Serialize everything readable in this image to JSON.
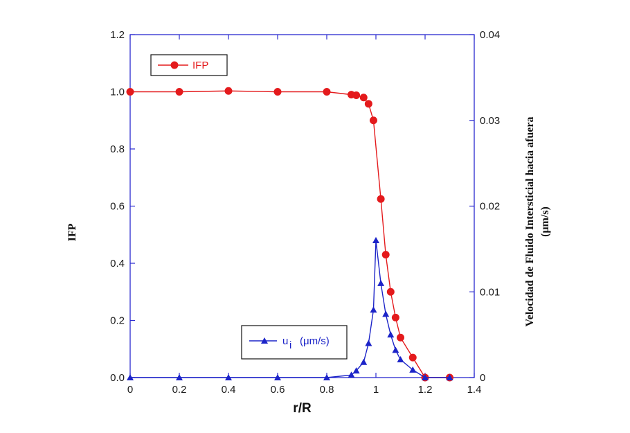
{
  "chart_data": {
    "type": "line",
    "xlabel": "r/R",
    "ylabel_left": "IFP",
    "ylabel_right_lines": [
      "Velocidad de Fluido Intersticial hacia afuera",
      "(μm/s)"
    ],
    "xlim": [
      0,
      1.4
    ],
    "ylim_left": [
      0,
      1.2
    ],
    "ylim_right": [
      0,
      0.04
    ],
    "x_ticks": [
      "0",
      "0.2",
      "0.4",
      "0.6",
      "0.8",
      "1",
      "1.2",
      "1.4"
    ],
    "y_left_ticks": [
      "0.0",
      "0.2",
      "0.4",
      "0.6",
      "0.8",
      "1.0",
      "1.2"
    ],
    "y_right_ticks": [
      "0",
      "0.01",
      "0.02",
      "0.03",
      "0.04"
    ],
    "grid": false,
    "series": [
      {
        "name": "IFP",
        "axis": "left",
        "color": "#e41a1c",
        "marker": "circle",
        "points": [
          [
            0,
            1.0
          ],
          [
            0.2,
            1.0
          ],
          [
            0.4,
            1.003
          ],
          [
            0.6,
            1.0
          ],
          [
            0.8,
            1.0
          ],
          [
            0.9,
            0.99
          ],
          [
            0.92,
            0.988
          ],
          [
            0.95,
            0.98
          ],
          [
            0.97,
            0.958
          ],
          [
            0.99,
            0.9
          ],
          [
            1.02,
            0.625
          ],
          [
            1.04,
            0.43
          ],
          [
            1.06,
            0.3
          ],
          [
            1.08,
            0.21
          ],
          [
            1.1,
            0.14
          ],
          [
            1.15,
            0.07
          ],
          [
            1.2,
            0.0
          ],
          [
            1.3,
            0.0
          ]
        ]
      },
      {
        "name_main": "u",
        "name_sub": "i",
        "name_unit": "(μm/s)",
        "axis": "right",
        "color": "#1c24c8",
        "marker": "triangle",
        "points": [
          [
            0,
            0
          ],
          [
            0.2,
            0
          ],
          [
            0.4,
            0
          ],
          [
            0.6,
            0
          ],
          [
            0.8,
            0
          ],
          [
            0.9,
            0.0003
          ],
          [
            0.92,
            0.0008
          ],
          [
            0.95,
            0.0018
          ],
          [
            0.97,
            0.004
          ],
          [
            0.99,
            0.0079
          ],
          [
            1.0,
            0.016
          ],
          [
            1.02,
            0.011
          ],
          [
            1.04,
            0.0074
          ],
          [
            1.06,
            0.005
          ],
          [
            1.08,
            0.0032
          ],
          [
            1.1,
            0.0021
          ],
          [
            1.15,
            0.0009
          ],
          [
            1.2,
            0.0
          ],
          [
            1.3,
            0.0
          ]
        ]
      }
    ],
    "legend_ifp_position": "top-left",
    "legend_ui_position": "bottom-center"
  }
}
